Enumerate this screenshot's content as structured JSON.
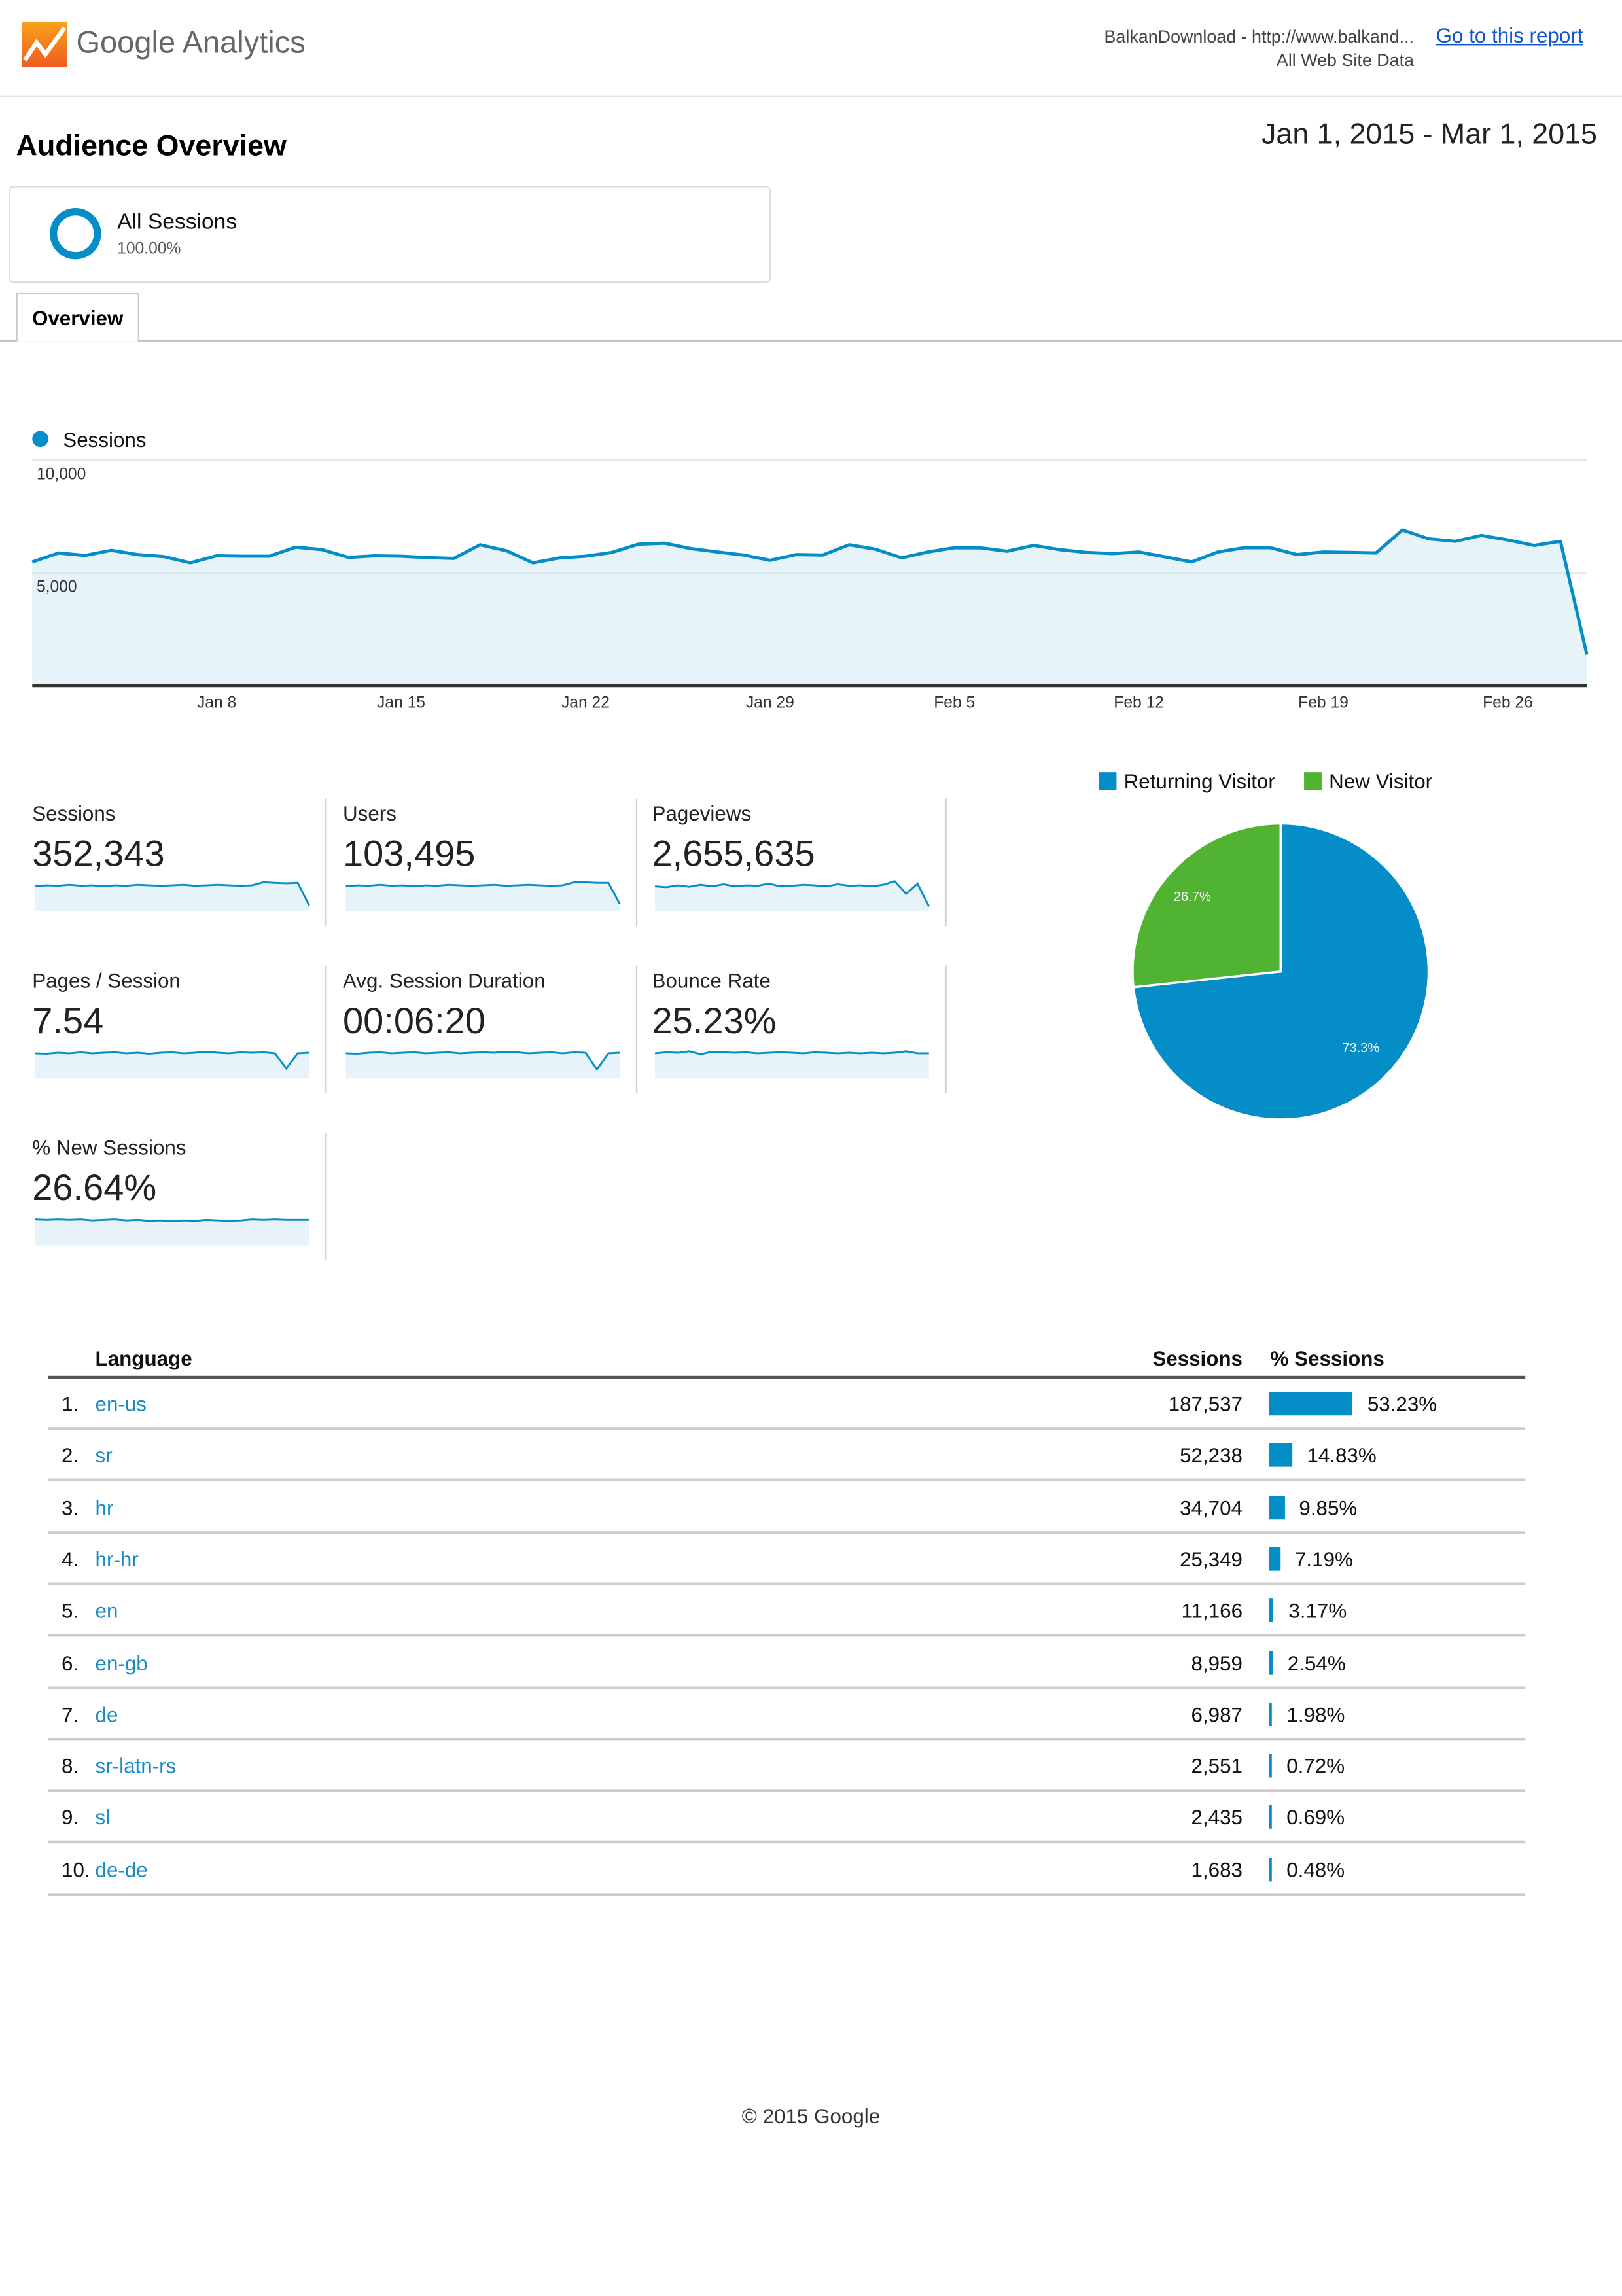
{
  "header": {
    "logo_text": "Google Analytics",
    "property": "BalkanDownload - http://www.balkand...",
    "view": "All Web Site Data",
    "go_to_report": "Go to this report"
  },
  "page": {
    "title": "Audience Overview",
    "date_range": "Jan 1, 2015 - Mar 1, 2015"
  },
  "segment": {
    "name": "All Sessions",
    "percent": "100.00%"
  },
  "tabs": [
    {
      "label": "Overview",
      "active": true
    }
  ],
  "colors": {
    "accent": "#058dc7",
    "new_visitor": "#50b432",
    "link": "#1155cc",
    "area_fill": "#e6f3f9"
  },
  "chart_data": [
    {
      "type": "area",
      "legend": "Sessions",
      "y_ticks": [
        "10,000",
        "5,000"
      ],
      "ylim": [
        0,
        10000
      ],
      "x_ticks": [
        "Jan 8",
        "Jan 15",
        "Jan 22",
        "Jan 29",
        "Feb 5",
        "Feb 12",
        "Feb 19",
        "Feb 26"
      ],
      "x_range": [
        "Jan 1",
        "Mar 1"
      ],
      "grid": true,
      "series": [
        {
          "name": "Sessions",
          "values": [
            5490,
            5880,
            5770,
            6000,
            5810,
            5720,
            5450,
            5760,
            5740,
            5740,
            6140,
            6030,
            5690,
            5760,
            5740,
            5680,
            5640,
            6250,
            5980,
            5450,
            5660,
            5740,
            5910,
            6270,
            6320,
            6080,
            5930,
            5790,
            5560,
            5810,
            5790,
            6250,
            6050,
            5670,
            5930,
            6120,
            6110,
            5960,
            6220,
            6030,
            5910,
            5860,
            5930,
            5710,
            5490,
            5930,
            6120,
            6120,
            5810,
            5930,
            5910,
            5880,
            6900,
            6510,
            6400,
            6660,
            6460,
            6220,
            6400,
            1380
          ]
        }
      ]
    },
    {
      "type": "pie",
      "legend_placement": "top",
      "categories": [
        "Returning Visitor",
        "New Visitor"
      ],
      "values": [
        73.3,
        26.7
      ],
      "labels": [
        "73.3%",
        "26.7%"
      ]
    }
  ],
  "metrics": [
    {
      "label": "Sessions",
      "value": "352,343",
      "sparkline": [
        5,
        5.2,
        5.1,
        5.3,
        5.1,
        5.2,
        5.0,
        5.2,
        5.1,
        5.3,
        5.2,
        5.1,
        5.2,
        5.3,
        5.1,
        5.2,
        5.3,
        5.2,
        5.1,
        5.2,
        5.8,
        5.7,
        5.6,
        5.7,
        1.2
      ]
    },
    {
      "label": "Users",
      "value": "103,495",
      "sparkline": [
        5,
        5.2,
        5.1,
        5.3,
        5.1,
        5.2,
        5.0,
        5.2,
        5.1,
        5.3,
        5.2,
        5.1,
        5.2,
        5.3,
        5.1,
        5.2,
        5.3,
        5.2,
        5.1,
        5.2,
        5.8,
        5.8,
        5.7,
        5.7,
        1.5
      ]
    },
    {
      "label": "Pageviews",
      "value": "2,655,635",
      "sparkline": [
        5,
        4.8,
        5.2,
        4.9,
        5.3,
        5.0,
        5.4,
        5.0,
        5.2,
        5.1,
        5.5,
        5.0,
        5.1,
        5.3,
        5.2,
        5.0,
        5.4,
        5.1,
        5.2,
        5.0,
        5.3,
        6.0,
        3.5,
        5.5,
        1.0
      ]
    },
    {
      "label": "Pages / Session",
      "value": "7.54",
      "sparkline": [
        5,
        4.9,
        5.1,
        5.0,
        5.2,
        5.0,
        5.1,
        5.2,
        5.0,
        5.1,
        4.9,
        5.1,
        5.2,
        5.0,
        5.1,
        5.3,
        5.1,
        5.0,
        5.2,
        5.1,
        5.2,
        5.0,
        2.0,
        5.0,
        5.1
      ]
    },
    {
      "label": "Avg. Session Duration",
      "value": "00:06:20",
      "sparkline": [
        5,
        4.9,
        5.1,
        5.2,
        5.0,
        5.1,
        5.2,
        5.0,
        5.1,
        5.2,
        5.0,
        5.1,
        5.2,
        5.1,
        5.3,
        5.2,
        5.0,
        5.1,
        5.2,
        5.0,
        5.2,
        5.1,
        1.8,
        5.0,
        5.1
      ]
    },
    {
      "label": "Bounce Rate",
      "value": "25.23%",
      "sparkline": [
        5,
        5.2,
        5.1,
        5.4,
        4.8,
        5.3,
        5.2,
        5.1,
        5.2,
        5.0,
        5.1,
        5.2,
        5.1,
        5.0,
        5.2,
        5.1,
        5.0,
        5.1,
        5.0,
        5.1,
        5.0,
        5.1,
        5.4,
        5.0,
        5.0
      ]
    },
    {
      "label": "% New Sessions",
      "value": "26.64%",
      "sparkline": [
        5.2,
        5.1,
        5.2,
        5.1,
        5.2,
        5.0,
        5.1,
        5.2,
        5.0,
        5.1,
        4.9,
        5.0,
        4.8,
        5.0,
        4.9,
        5.1,
        5.0,
        4.9,
        5.0,
        5.2,
        5.1,
        5.2,
        5.1,
        5.1,
        5.1
      ]
    }
  ],
  "table": {
    "headers": {
      "dimension": "Language",
      "sessions": "Sessions",
      "pct_sessions": "% Sessions"
    },
    "rows": [
      {
        "rank": "1.",
        "language": "en-us",
        "sessions": "187,537",
        "pct": "53.23%",
        "pct_value": 53.23
      },
      {
        "rank": "2.",
        "language": "sr",
        "sessions": "52,238",
        "pct": "14.83%",
        "pct_value": 14.83
      },
      {
        "rank": "3.",
        "language": "hr",
        "sessions": "34,704",
        "pct": "9.85%",
        "pct_value": 9.85
      },
      {
        "rank": "4.",
        "language": "hr-hr",
        "sessions": "25,349",
        "pct": "7.19%",
        "pct_value": 7.19
      },
      {
        "rank": "5.",
        "language": "en",
        "sessions": "11,166",
        "pct": "3.17%",
        "pct_value": 3.17
      },
      {
        "rank": "6.",
        "language": "en-gb",
        "sessions": "8,959",
        "pct": "2.54%",
        "pct_value": 2.54
      },
      {
        "rank": "7.",
        "language": "de",
        "sessions": "6,987",
        "pct": "1.98%",
        "pct_value": 1.98
      },
      {
        "rank": "8.",
        "language": "sr-latn-rs",
        "sessions": "2,551",
        "pct": "0.72%",
        "pct_value": 0.72
      },
      {
        "rank": "9.",
        "language": "sl",
        "sessions": "2,435",
        "pct": "0.69%",
        "pct_value": 0.69
      },
      {
        "rank": "10.",
        "language": "de-de",
        "sessions": "1,683",
        "pct": "0.48%",
        "pct_value": 0.48
      }
    ]
  },
  "footer": {
    "copyright": "© 2015 Google"
  }
}
